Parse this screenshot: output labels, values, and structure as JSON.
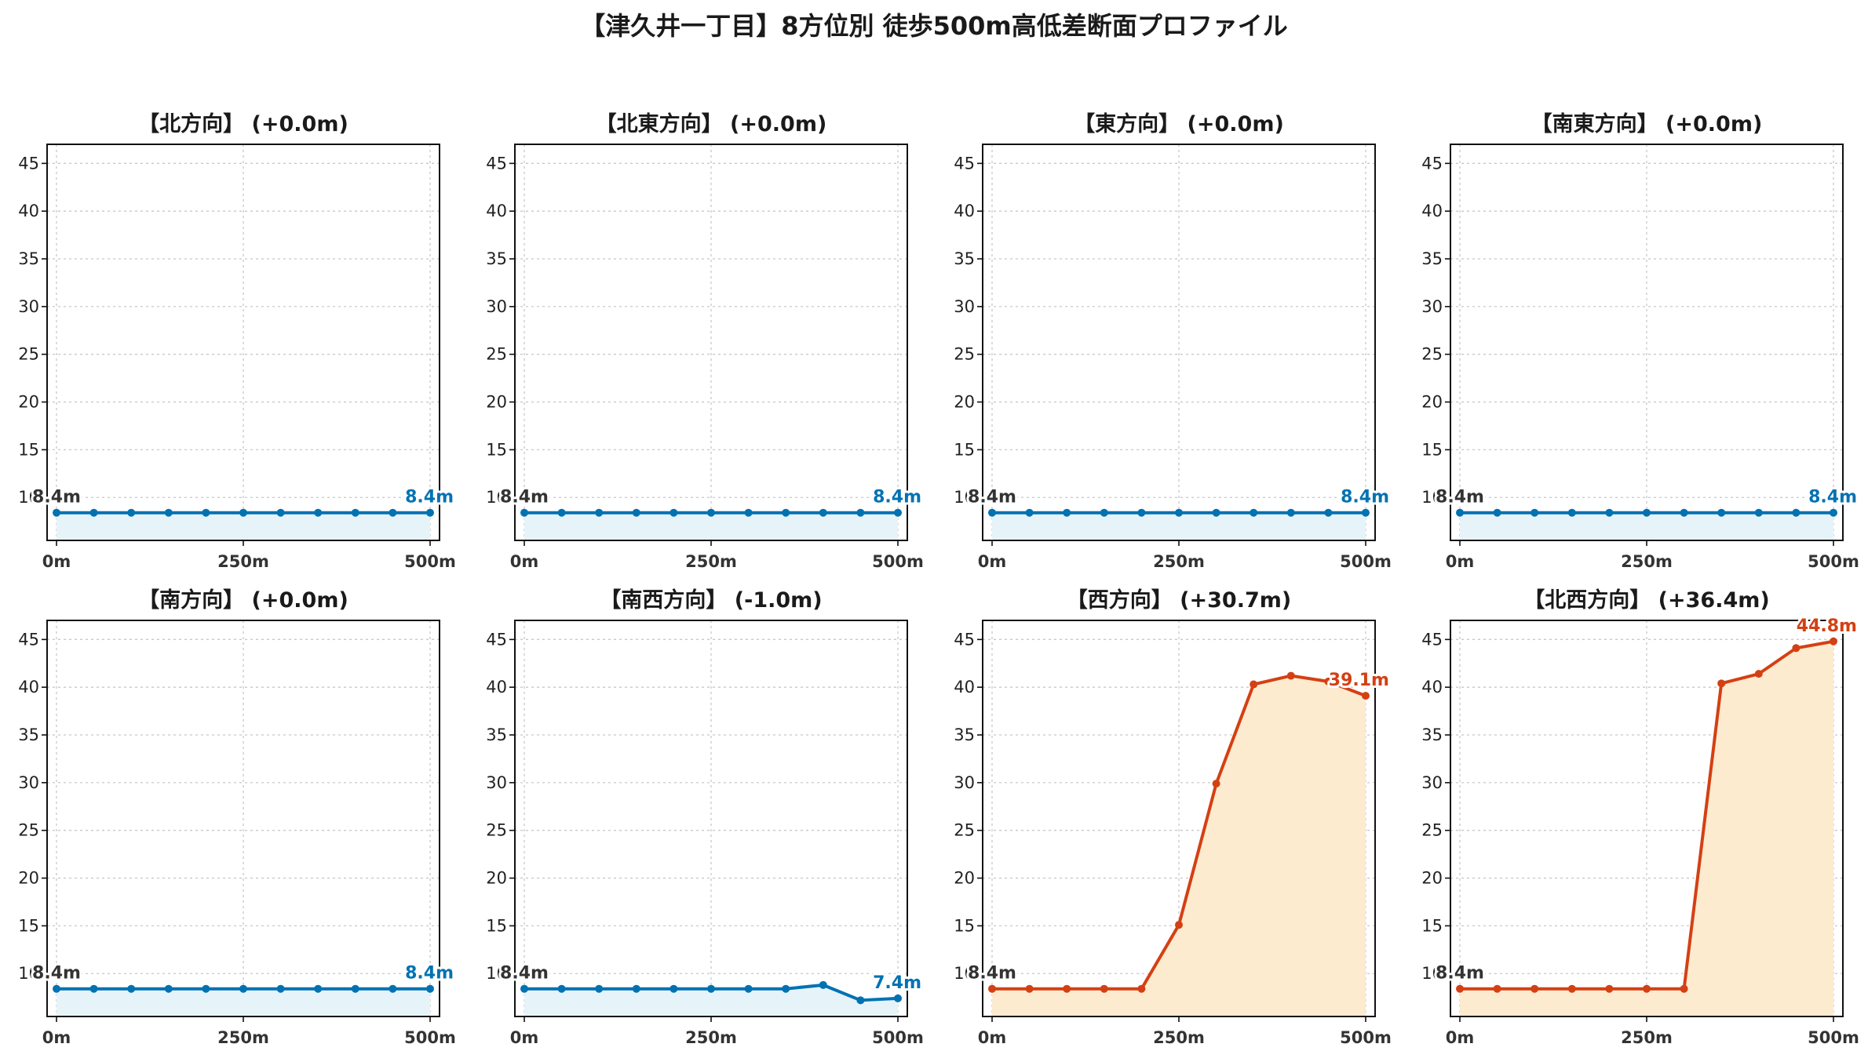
{
  "suptitle": "【津久井一丁目】8方位別 徒歩500m高低差断面プロファイル",
  "colors": {
    "flat_line": "#0072b2",
    "flat_fill": "#e6f4fa",
    "up_line": "#d44013",
    "up_fill": "#fdebd0",
    "start_label": "#333333"
  },
  "chart_data": [
    {
      "type": "area",
      "title": "【北方向】 (+0.0m)",
      "trend": "flat",
      "x": [
        0,
        50,
        100,
        150,
        200,
        250,
        300,
        350,
        400,
        450,
        500
      ],
      "y": [
        8.4,
        8.4,
        8.4,
        8.4,
        8.4,
        8.4,
        8.4,
        8.4,
        8.4,
        8.4,
        8.4
      ],
      "start_label": "8.4m",
      "end_label": "8.4m",
      "ylim": [
        5.5,
        47
      ],
      "yticks": [
        10,
        15,
        20,
        25,
        30,
        35,
        40,
        45
      ],
      "xticks": [
        "0m",
        "250m",
        "500m"
      ],
      "grid": true
    },
    {
      "type": "area",
      "title": "【北東方向】 (+0.0m)",
      "trend": "flat",
      "x": [
        0,
        50,
        100,
        150,
        200,
        250,
        300,
        350,
        400,
        450,
        500
      ],
      "y": [
        8.4,
        8.4,
        8.4,
        8.4,
        8.4,
        8.4,
        8.4,
        8.4,
        8.4,
        8.4,
        8.4
      ],
      "start_label": "8.4m",
      "end_label": "8.4m",
      "ylim": [
        5.5,
        47
      ],
      "yticks": [
        10,
        15,
        20,
        25,
        30,
        35,
        40,
        45
      ],
      "xticks": [
        "0m",
        "250m",
        "500m"
      ],
      "grid": true
    },
    {
      "type": "area",
      "title": "【東方向】 (+0.0m)",
      "trend": "flat",
      "x": [
        0,
        50,
        100,
        150,
        200,
        250,
        300,
        350,
        400,
        450,
        500
      ],
      "y": [
        8.4,
        8.4,
        8.4,
        8.4,
        8.4,
        8.4,
        8.4,
        8.4,
        8.4,
        8.4,
        8.4
      ],
      "start_label": "8.4m",
      "end_label": "8.4m",
      "ylim": [
        5.5,
        47
      ],
      "yticks": [
        10,
        15,
        20,
        25,
        30,
        35,
        40,
        45
      ],
      "xticks": [
        "0m",
        "250m",
        "500m"
      ],
      "grid": true
    },
    {
      "type": "area",
      "title": "【南東方向】 (+0.0m)",
      "trend": "flat",
      "x": [
        0,
        50,
        100,
        150,
        200,
        250,
        300,
        350,
        400,
        450,
        500
      ],
      "y": [
        8.4,
        8.4,
        8.4,
        8.4,
        8.4,
        8.4,
        8.4,
        8.4,
        8.4,
        8.4,
        8.4
      ],
      "start_label": "8.4m",
      "end_label": "8.4m",
      "ylim": [
        5.5,
        47
      ],
      "yticks": [
        10,
        15,
        20,
        25,
        30,
        35,
        40,
        45
      ],
      "xticks": [
        "0m",
        "250m",
        "500m"
      ],
      "grid": true
    },
    {
      "type": "area",
      "title": "【南方向】 (+0.0m)",
      "trend": "flat",
      "x": [
        0,
        50,
        100,
        150,
        200,
        250,
        300,
        350,
        400,
        450,
        500
      ],
      "y": [
        8.4,
        8.4,
        8.4,
        8.4,
        8.4,
        8.4,
        8.4,
        8.4,
        8.4,
        8.4,
        8.4
      ],
      "start_label": "8.4m",
      "end_label": "8.4m",
      "ylim": [
        5.5,
        47
      ],
      "yticks": [
        10,
        15,
        20,
        25,
        30,
        35,
        40,
        45
      ],
      "xticks": [
        "0m",
        "250m",
        "500m"
      ],
      "grid": true
    },
    {
      "type": "area",
      "title": "【南西方向】 (-1.0m)",
      "trend": "flat",
      "x": [
        0,
        50,
        100,
        150,
        200,
        250,
        300,
        350,
        400,
        450,
        500
      ],
      "y": [
        8.4,
        8.4,
        8.4,
        8.4,
        8.4,
        8.4,
        8.4,
        8.4,
        8.8,
        7.2,
        7.4
      ],
      "start_label": "8.4m",
      "end_label": "7.4m",
      "ylim": [
        5.5,
        47
      ],
      "yticks": [
        10,
        15,
        20,
        25,
        30,
        35,
        40,
        45
      ],
      "xticks": [
        "0m",
        "250m",
        "500m"
      ],
      "grid": true
    },
    {
      "type": "area",
      "title": "【西方向】 (+30.7m)",
      "trend": "up",
      "x": [
        0,
        50,
        100,
        150,
        200,
        250,
        300,
        350,
        400,
        450,
        500
      ],
      "y": [
        8.4,
        8.4,
        8.4,
        8.4,
        8.4,
        15.1,
        29.9,
        40.3,
        41.2,
        40.6,
        39.1
      ],
      "start_label": "8.4m",
      "end_label": "39.1m",
      "ylim": [
        5.5,
        47
      ],
      "yticks": [
        10,
        15,
        20,
        25,
        30,
        35,
        40,
        45
      ],
      "xticks": [
        "0m",
        "250m",
        "500m"
      ],
      "grid": true
    },
    {
      "type": "area",
      "title": "【北西方向】 (+36.4m)",
      "trend": "up",
      "x": [
        0,
        50,
        100,
        150,
        200,
        250,
        300,
        350,
        400,
        450,
        500
      ],
      "y": [
        8.4,
        8.4,
        8.4,
        8.4,
        8.4,
        8.4,
        8.4,
        40.4,
        41.4,
        44.1,
        44.8
      ],
      "start_label": "8.4m",
      "end_label": "44.8m",
      "ylim": [
        5.5,
        47
      ],
      "yticks": [
        10,
        15,
        20,
        25,
        30,
        35,
        40,
        45
      ],
      "xticks": [
        "0m",
        "250m",
        "500m"
      ],
      "grid": true
    }
  ]
}
